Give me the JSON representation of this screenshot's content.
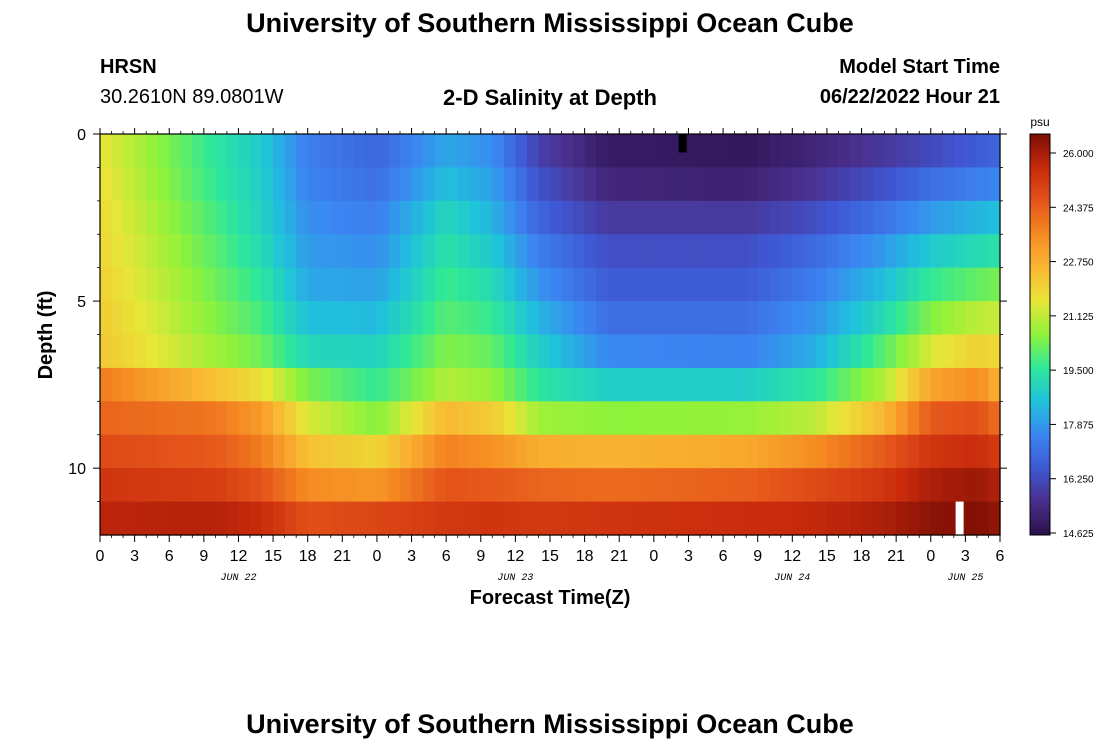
{
  "header": {
    "title": "University of Southern Mississippi Ocean Cube",
    "station": "HRSN",
    "coords": "30.2610N  89.0801W",
    "subtitle": "2-D Salinity at Depth",
    "model_start_label": "Model Start Time",
    "model_start_value": "06/22/2022 Hour 21"
  },
  "footer": {
    "title": "University of Southern Mississippi Ocean Cube"
  },
  "chart_data": {
    "type": "heatmap",
    "title": "2-D Salinity at Depth",
    "xlabel": "Forecast Time(Z)",
    "ylabel": "Depth (ft)",
    "x_ticks": [
      "0",
      "3",
      "6",
      "9",
      "12",
      "15",
      "18",
      "21",
      "0",
      "3",
      "6",
      "9",
      "12",
      "15",
      "18",
      "21",
      "0",
      "3",
      "6",
      "9",
      "12",
      "15",
      "18",
      "21",
      "0",
      "3",
      "6"
    ],
    "date_labels": [
      {
        "label": "JUN 22",
        "hour": 12
      },
      {
        "label": "JUN 23",
        "hour": 36
      },
      {
        "label": "JUN 24",
        "hour": 60
      },
      {
        "label": "JUN 25",
        "hour": 75
      }
    ],
    "x_range_hours": [
      0,
      78
    ],
    "ylim": [
      0,
      12
    ],
    "y_ticks": [
      "0",
      "5",
      "10"
    ],
    "depth_layers": 12,
    "colorbar": {
      "unit": "psu",
      "min": 14.625,
      "max": 26.0,
      "ticks": [
        "26.000",
        "24.375",
        "22.750",
        "21.125",
        "19.500",
        "17.875",
        "16.250",
        "14.625"
      ],
      "colors": [
        "#2a0f4a",
        "#4a2f8c",
        "#3f58d4",
        "#3b86f2",
        "#1fc2db",
        "#2ee89a",
        "#8ef23a",
        "#e8e637",
        "#f9b733",
        "#f58a22",
        "#e4531a",
        "#c82a0c",
        "#7a0d04"
      ]
    },
    "time_keys": [
      0,
      10,
      14,
      18,
      24,
      30,
      34,
      38,
      44,
      56,
      62,
      68,
      72,
      76,
      78
    ],
    "salinity_by_layer": [
      [
        21.3,
        19.3,
        18.6,
        17.3,
        16.8,
        18.0,
        17.6,
        16.0,
        15.0,
        14.9,
        15.3,
        15.8,
        16.2,
        16.6,
        16.8
      ],
      [
        21.4,
        19.4,
        18.7,
        17.4,
        17.0,
        18.4,
        17.9,
        16.4,
        15.3,
        15.2,
        15.7,
        16.4,
        17.0,
        17.3,
        17.5
      ],
      [
        21.5,
        19.6,
        18.8,
        17.6,
        17.3,
        18.9,
        18.2,
        16.8,
        15.8,
        15.8,
        16.3,
        17.1,
        17.8,
        18.2,
        18.4
      ],
      [
        21.6,
        19.8,
        19.0,
        17.8,
        17.6,
        19.2,
        18.6,
        17.3,
        16.3,
        16.3,
        16.9,
        17.8,
        18.6,
        19.0,
        19.2
      ],
      [
        21.7,
        20.0,
        19.3,
        18.0,
        17.9,
        19.5,
        19.0,
        17.7,
        16.6,
        16.6,
        17.3,
        18.4,
        19.4,
        19.9,
        20.1
      ],
      [
        21.8,
        20.2,
        19.6,
        18.4,
        18.3,
        19.8,
        19.4,
        18.2,
        17.0,
        17.0,
        17.7,
        19.0,
        20.2,
        20.8,
        20.9
      ],
      [
        21.9,
        20.5,
        20.0,
        18.9,
        18.8,
        20.2,
        19.9,
        18.7,
        17.5,
        17.4,
        18.1,
        19.8,
        21.1,
        21.7,
        21.5
      ],
      [
        23.4,
        22.0,
        21.4,
        20.1,
        19.4,
        20.7,
        20.4,
        19.3,
        18.7,
        18.7,
        19.3,
        20.7,
        22.6,
        23.1,
        22.3
      ],
      [
        23.8,
        23.5,
        22.8,
        21.1,
        20.2,
        22.2,
        21.8,
        20.5,
        20.3,
        20.4,
        20.8,
        22.2,
        24.0,
        24.2,
        23.6
      ],
      [
        24.3,
        24.0,
        23.4,
        22.0,
        21.6,
        23.3,
        23.0,
        22.4,
        22.3,
        22.5,
        23.1,
        24.0,
        24.8,
        25.0,
        24.6
      ],
      [
        24.8,
        24.6,
        24.1,
        23.1,
        22.9,
        24.1,
        24.0,
        23.8,
        23.7,
        23.9,
        24.3,
        24.8,
        25.4,
        25.6,
        25.3
      ],
      [
        25.2,
        25.3,
        25.0,
        24.2,
        24.4,
        24.7,
        24.8,
        24.7,
        24.8,
        25.0,
        25.1,
        25.4,
        25.8,
        25.9,
        25.7
      ]
    ],
    "markers": [
      {
        "hour": 50.5,
        "layer": 0,
        "value": "below-min",
        "color": "#000000"
      },
      {
        "hour": 74.5,
        "layer": 11,
        "value": "above-max",
        "color": "#ffffff"
      }
    ]
  }
}
